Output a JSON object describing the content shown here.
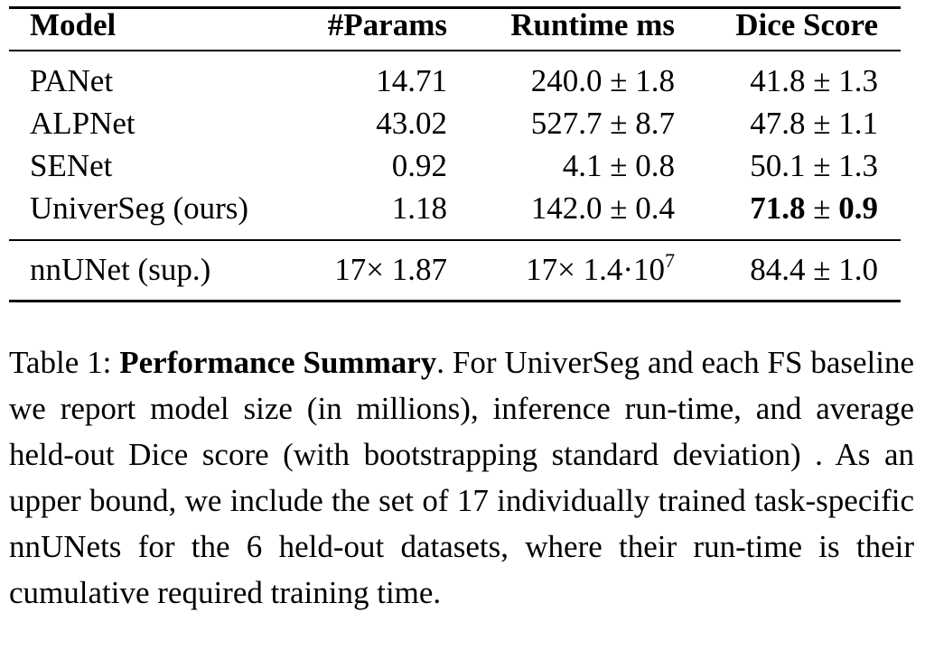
{
  "table": {
    "headers": [
      "Model",
      "#Params",
      "Runtime ms",
      "Dice Score"
    ],
    "rows": [
      {
        "model": "PANet",
        "params": "14.71",
        "runtime": "240.0 ± 1.8",
        "dice_mean": "41.8",
        "dice_sd": "1.3"
      },
      {
        "model": "ALPNet",
        "params": "43.02",
        "runtime": "527.7 ± 8.7",
        "dice_mean": "47.8",
        "dice_sd": "1.1"
      },
      {
        "model": "SENet",
        "params": "0.92",
        "runtime": "4.1 ± 0.8",
        "dice_mean": "50.1",
        "dice_sd": "1.3"
      },
      {
        "model": "UniverSeg (ours)",
        "params": "1.18",
        "runtime": "142.0 ± 0.4",
        "dice_mean": "71.8",
        "dice_sd": "0.9"
      }
    ],
    "supervised_row": {
      "model": "nnUNet (sup.)",
      "params": "17× 1.87",
      "runtime_base": "17× 1.4·10",
      "runtime_exp": "7",
      "dice_mean": "84.4",
      "dice_sd": "1.0"
    },
    "pm_symbol": "±"
  },
  "caption": {
    "label": "Table 1: ",
    "title": "Performance Summary",
    "body": ". For UniverSeg and each FS baseline we report model size (in millions), inference run-time, and average held-out Dice score (with bootstrapping standard deviation) . As an upper bound, we include the set of 17 individually trained task-specific nnUNets for the 6 held-out datasets, where their run-time is their cumulative required training time."
  }
}
